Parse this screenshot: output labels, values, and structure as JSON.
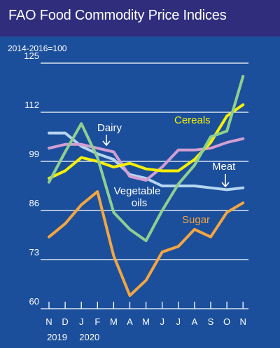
{
  "chart_data": {
    "type": "line",
    "title": "FAO Food Commodity Price Indices",
    "unit_label": "2014-2016=100",
    "x": [
      "N",
      "D",
      "J",
      "F",
      "M",
      "A",
      "M",
      "J",
      "J",
      "A",
      "S",
      "O",
      "N"
    ],
    "year_labels": [
      "2019",
      "2020"
    ],
    "ylim": [
      60,
      125
    ],
    "yticks": [
      60,
      73,
      86,
      99,
      112,
      125
    ],
    "grid": true,
    "series": [
      {
        "name": "Meat",
        "color": "#b5d5ef",
        "values": [
          106.5,
          106.5,
          103,
          101,
          99.5,
          95.5,
          94.5,
          92.5,
          92.5,
          92.5,
          92,
          91.5,
          92
        ]
      },
      {
        "name": "Dairy",
        "color": "#d39ed3",
        "values": [
          102.5,
          103.5,
          103.5,
          102.5,
          101.5,
          95,
          94,
          97.5,
          102,
          102,
          102.5,
          104,
          105
        ]
      },
      {
        "name": "Cereals",
        "color": "#f7f004",
        "values": [
          94.5,
          96.5,
          100,
          99,
          97.5,
          98.5,
          97,
          96.5,
          96.5,
          99.5,
          104,
          111,
          114
        ]
      },
      {
        "name": "Vegetable oils",
        "color": "#8fcf8f",
        "values": [
          93.5,
          101.5,
          109,
          100,
          85.5,
          81,
          78,
          86,
          93,
          98,
          105.5,
          107,
          121.5
        ]
      },
      {
        "name": "Sugar",
        "color": "#f3a640",
        "values": [
          79,
          82.5,
          87.5,
          91,
          74,
          63.5,
          67.5,
          75,
          76.5,
          81,
          79,
          85.5,
          88
        ]
      }
    ],
    "labels": {
      "meat": "Meat",
      "dairy": "Dairy",
      "cereals": "Cereals",
      "veg_line1": "Vegetable",
      "veg_line2": "oils",
      "sugar": "Sugar"
    }
  }
}
